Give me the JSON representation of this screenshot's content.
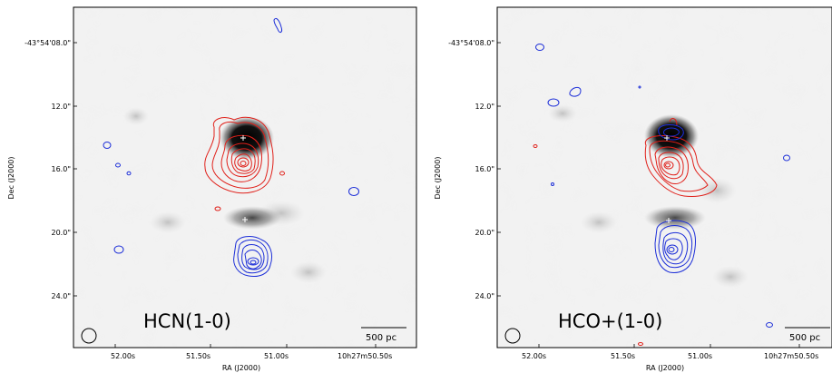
{
  "panels": [
    {
      "line_label": "HCN(1-0)",
      "scalebar_label": "500 pc",
      "xlabel": "RA (J2000)",
      "ylabel": "Dec (J2000)",
      "x_ticks": [
        "52.00s",
        "51.50s",
        "51.00s",
        "10h27m50.50s"
      ],
      "y_ticks": [
        "-43°54'08.0\"",
        "12.0\"",
        "16.0\"",
        "20.0\"",
        "24.0\""
      ],
      "colors": {
        "red_contours": "#e0201a",
        "blue_contours": "#1c2ed8",
        "markers": "#ffffff"
      }
    },
    {
      "line_label": "HCO+(1-0)",
      "scalebar_label": "500 pc",
      "xlabel": "RA (J2000)",
      "ylabel": "Dec (J2000)",
      "x_ticks": [
        "52.00s",
        "51.50s",
        "51.00s",
        "10h27m50.50s"
      ],
      "y_ticks": [
        "-43°54'08.0\"",
        "12.0\"",
        "16.0\"",
        "20.0\"",
        "24.0\""
      ],
      "colors": {
        "red_contours": "#e0201a",
        "blue_contours": "#1c2ed8",
        "markers": "#ffffff"
      }
    }
  ]
}
